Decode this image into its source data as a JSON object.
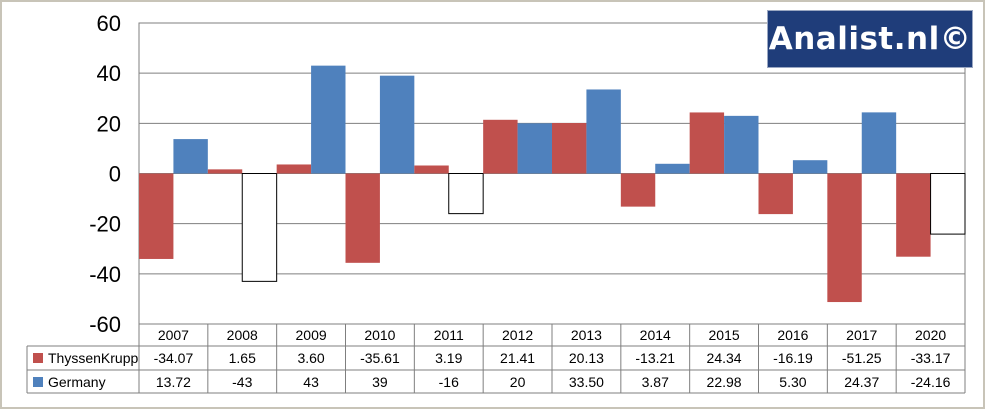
{
  "logo": {
    "text": "Analist.nl©"
  },
  "colors": {
    "thyssenkrupp": "#c0504d",
    "germany": "#4f81bd",
    "negative_fill": "#ffffff",
    "grid": "#7f7f7f"
  },
  "chart_data": {
    "type": "bar",
    "categories": [
      "2007",
      "2008",
      "2009",
      "2010",
      "2011",
      "2012",
      "2013",
      "2014",
      "2015",
      "2016",
      "2017",
      "2020"
    ],
    "series": [
      {
        "name": "ThyssenKrupp",
        "values": [
          -34.07,
          1.65,
          3.6,
          -35.61,
          3.19,
          21.41,
          20.13,
          -13.21,
          24.34,
          -16.19,
          -51.25,
          -33.17
        ],
        "labels": [
          "-34.07",
          "1.65",
          "3.60",
          "-35.61",
          "3.19",
          "21.41",
          "20.13",
          "-13.21",
          "24.34",
          "-16.19",
          "-51.25",
          "-33.17"
        ]
      },
      {
        "name": "Germany",
        "values": [
          13.72,
          -43,
          43,
          39,
          -16,
          20,
          33.5,
          3.87,
          22.98,
          5.3,
          24.37,
          -24.16
        ],
        "labels": [
          "13.72",
          "-43",
          "43",
          "39",
          "-16",
          "20",
          "33.50",
          "3.87",
          "22.98",
          "5.30",
          "24.37",
          "-24.16"
        ]
      }
    ],
    "ylim": [
      -60,
      60
    ],
    "yticks": [
      "60",
      "40",
      "20",
      "0",
      "-20",
      "-40",
      "-60"
    ],
    "ytick_values": [
      60,
      40,
      20,
      0,
      -20,
      -40,
      -60
    ],
    "grid": true,
    "legend": "data-table"
  }
}
